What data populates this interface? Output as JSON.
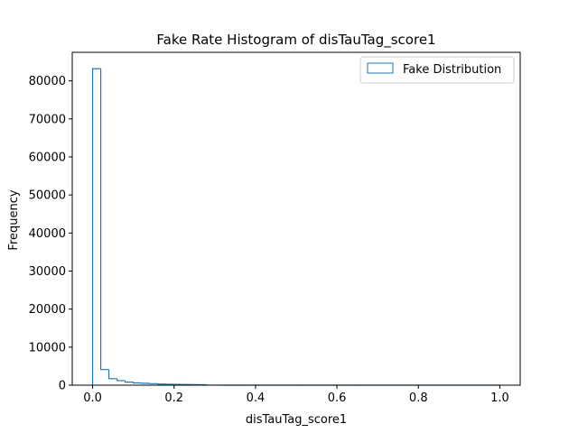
{
  "chart_data": {
    "type": "histogram",
    "title": "Fake Rate Histogram of disTauTag_score1",
    "xlabel": "disTauTag_score1",
    "ylabel": "Frequency",
    "xlim": [
      -0.05,
      1.05
    ],
    "ylim": [
      0,
      87500
    ],
    "xticks": [
      0.0,
      0.2,
      0.4,
      0.6,
      0.8,
      1.0
    ],
    "xtick_labels": [
      "0.0",
      "0.2",
      "0.4",
      "0.6",
      "0.8",
      "1.0"
    ],
    "yticks": [
      0,
      10000,
      20000,
      30000,
      40000,
      50000,
      60000,
      70000,
      80000
    ],
    "ytick_labels": [
      "0",
      "10000",
      "20000",
      "30000",
      "40000",
      "50000",
      "60000",
      "70000",
      "80000"
    ],
    "grid": false,
    "legend_position": "top-right",
    "histtype": "step",
    "color": "#1f77b4",
    "series": [
      {
        "name": "Fake Distribution",
        "bin_edges": [
          0.0,
          0.02,
          0.04,
          0.06,
          0.08,
          0.1,
          0.12,
          0.14,
          0.16,
          0.18,
          0.2,
          0.22,
          0.24,
          0.26,
          0.28,
          0.3,
          0.32,
          0.34,
          0.36,
          0.38,
          0.4,
          0.42,
          0.44,
          0.46,
          0.48,
          0.5,
          0.52,
          0.54,
          0.56,
          0.58,
          0.6,
          0.62,
          0.64,
          0.66,
          0.68,
          0.7,
          0.72,
          0.74,
          0.76,
          0.78,
          0.8,
          0.82,
          0.84,
          0.86,
          0.88,
          0.9,
          0.92,
          0.94,
          0.96,
          0.98,
          1.0
        ],
        "counts": [
          83200,
          4100,
          1700,
          1200,
          800,
          600,
          500,
          400,
          300,
          250,
          200,
          180,
          150,
          130,
          20,
          10,
          8,
          6,
          5,
          5,
          4,
          4,
          3,
          3,
          3,
          2,
          2,
          2,
          2,
          2,
          2,
          2,
          1,
          1,
          1,
          1,
          1,
          1,
          1,
          1,
          1,
          1,
          1,
          1,
          1,
          1,
          1,
          1,
          1,
          1
        ]
      }
    ]
  }
}
